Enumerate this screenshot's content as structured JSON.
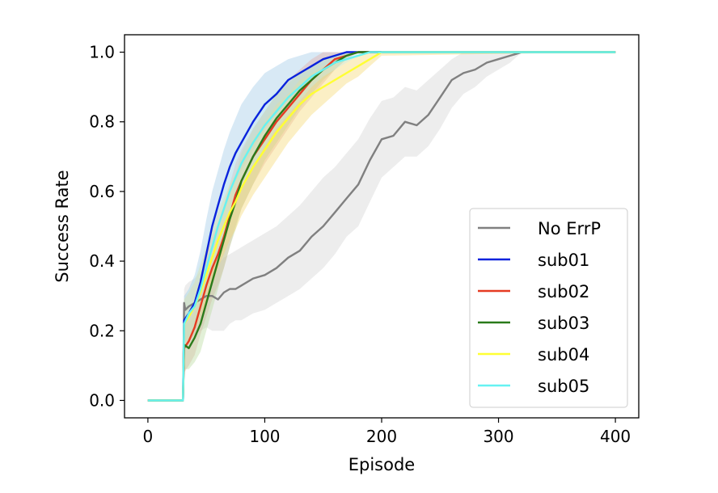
{
  "chart_data": {
    "type": "line",
    "title": "",
    "xlabel": "Episode",
    "ylabel": "Success Rate",
    "xlim": [
      -20,
      420
    ],
    "ylim": [
      -0.05,
      1.05
    ],
    "xticks": [
      0,
      100,
      200,
      300,
      400
    ],
    "yticks": [
      0.0,
      0.2,
      0.4,
      0.6,
      0.8,
      1.0
    ],
    "xtick_labels": [
      "0",
      "100",
      "200",
      "300",
      "400"
    ],
    "ytick_labels": [
      "0.0",
      "0.2",
      "0.4",
      "0.6",
      "0.8",
      "1.0"
    ],
    "grid": false,
    "legend_position": "lower-right",
    "series": [
      {
        "name": "No ErrP",
        "color": "#808080",
        "band_color": "#d3d3d3",
        "x": [
          0,
          30,
          31,
          32,
          35,
          40,
          45,
          50,
          55,
          60,
          65,
          70,
          75,
          80,
          90,
          100,
          110,
          120,
          130,
          140,
          150,
          160,
          170,
          180,
          190,
          200,
          210,
          220,
          230,
          240,
          250,
          260,
          270,
          280,
          290,
          300,
          310,
          320,
          330,
          400
        ],
        "y": [
          0.0,
          0.0,
          0.28,
          0.26,
          0.27,
          0.28,
          0.29,
          0.3,
          0.3,
          0.29,
          0.31,
          0.32,
          0.32,
          0.33,
          0.35,
          0.36,
          0.38,
          0.41,
          0.43,
          0.47,
          0.5,
          0.54,
          0.58,
          0.62,
          0.69,
          0.75,
          0.76,
          0.8,
          0.79,
          0.82,
          0.87,
          0.92,
          0.94,
          0.95,
          0.97,
          0.98,
          0.99,
          1.0,
          1.0,
          1.0
        ],
        "band_lower": [
          0.0,
          0.0,
          0.14,
          0.16,
          0.17,
          0.19,
          0.2,
          0.21,
          0.2,
          0.2,
          0.2,
          0.22,
          0.23,
          0.23,
          0.25,
          0.26,
          0.28,
          0.3,
          0.32,
          0.35,
          0.38,
          0.42,
          0.47,
          0.5,
          0.57,
          0.64,
          0.67,
          0.7,
          0.7,
          0.73,
          0.78,
          0.84,
          0.88,
          0.9,
          0.93,
          0.95,
          0.97,
          1.0,
          1.0,
          1.0
        ],
        "band_upper": [
          0.0,
          0.0,
          0.32,
          0.33,
          0.34,
          0.35,
          0.37,
          0.38,
          0.39,
          0.39,
          0.41,
          0.42,
          0.43,
          0.44,
          0.46,
          0.48,
          0.5,
          0.53,
          0.56,
          0.6,
          0.64,
          0.67,
          0.71,
          0.75,
          0.81,
          0.86,
          0.87,
          0.9,
          0.89,
          0.92,
          0.95,
          0.98,
          1.0,
          1.0,
          1.0,
          1.0,
          1.0,
          1.0,
          1.0,
          1.0
        ]
      },
      {
        "name": "sub01",
        "color": "#0a22dd",
        "band_color": "#9ec9e6",
        "x": [
          0,
          30,
          31,
          35,
          40,
          45,
          50,
          55,
          60,
          65,
          70,
          75,
          80,
          90,
          100,
          110,
          120,
          130,
          140,
          150,
          160,
          170,
          180,
          190,
          200,
          400
        ],
        "y": [
          0.0,
          0.0,
          0.23,
          0.25,
          0.28,
          0.34,
          0.42,
          0.5,
          0.56,
          0.62,
          0.67,
          0.71,
          0.74,
          0.8,
          0.85,
          0.88,
          0.92,
          0.94,
          0.96,
          0.98,
          0.99,
          1.0,
          1.0,
          1.0,
          1.0,
          1.0
        ],
        "band_lower": [
          0.0,
          0.0,
          0.16,
          0.18,
          0.21,
          0.26,
          0.34,
          0.42,
          0.48,
          0.54,
          0.59,
          0.63,
          0.66,
          0.72,
          0.78,
          0.82,
          0.86,
          0.89,
          0.92,
          0.95,
          0.97,
          0.99,
          1.0,
          1.0,
          1.0,
          1.0
        ],
        "band_upper": [
          0.0,
          0.0,
          0.3,
          0.32,
          0.36,
          0.43,
          0.52,
          0.6,
          0.66,
          0.72,
          0.77,
          0.81,
          0.85,
          0.9,
          0.94,
          0.96,
          0.98,
          0.99,
          1.0,
          1.0,
          1.0,
          1.0,
          1.0,
          1.0,
          1.0,
          1.0
        ]
      },
      {
        "name": "sub02",
        "color": "#e63b22",
        "band_color": "#e4a8a3",
        "x": [
          0,
          30,
          31,
          35,
          40,
          45,
          50,
          55,
          60,
          65,
          70,
          75,
          80,
          90,
          100,
          110,
          120,
          130,
          140,
          150,
          160,
          170,
          180,
          190,
          200,
          400
        ],
        "y": [
          0.0,
          0.0,
          0.15,
          0.17,
          0.21,
          0.27,
          0.33,
          0.38,
          0.42,
          0.47,
          0.53,
          0.59,
          0.63,
          0.7,
          0.75,
          0.8,
          0.84,
          0.88,
          0.92,
          0.95,
          0.98,
          0.99,
          1.0,
          1.0,
          1.0,
          1.0
        ],
        "band_lower": [
          0.0,
          0.0,
          0.08,
          0.1,
          0.13,
          0.19,
          0.24,
          0.29,
          0.33,
          0.38,
          0.44,
          0.5,
          0.55,
          0.62,
          0.68,
          0.73,
          0.78,
          0.83,
          0.87,
          0.91,
          0.95,
          0.98,
          1.0,
          1.0,
          1.0,
          1.0
        ],
        "band_upper": [
          0.0,
          0.0,
          0.22,
          0.25,
          0.29,
          0.35,
          0.42,
          0.47,
          0.51,
          0.56,
          0.62,
          0.68,
          0.72,
          0.78,
          0.83,
          0.88,
          0.92,
          0.95,
          0.98,
          1.0,
          1.0,
          1.0,
          1.0,
          1.0,
          1.0,
          1.0
        ]
      },
      {
        "name": "sub03",
        "color": "#2a7a1a",
        "band_color": "#b6d99b",
        "x": [
          0,
          30,
          31,
          35,
          40,
          45,
          50,
          55,
          60,
          65,
          70,
          75,
          80,
          90,
          100,
          110,
          120,
          130,
          140,
          150,
          160,
          170,
          180,
          190,
          200,
          400
        ],
        "y": [
          0.0,
          0.0,
          0.16,
          0.15,
          0.18,
          0.22,
          0.28,
          0.34,
          0.4,
          0.46,
          0.52,
          0.57,
          0.63,
          0.7,
          0.76,
          0.81,
          0.85,
          0.89,
          0.92,
          0.95,
          0.97,
          0.99,
          1.0,
          1.0,
          1.0,
          1.0
        ],
        "band_lower": [
          0.0,
          0.0,
          0.09,
          0.09,
          0.11,
          0.14,
          0.2,
          0.26,
          0.32,
          0.38,
          0.44,
          0.49,
          0.55,
          0.62,
          0.69,
          0.74,
          0.79,
          0.84,
          0.88,
          0.92,
          0.95,
          0.98,
          1.0,
          1.0,
          1.0,
          1.0
        ],
        "band_upper": [
          0.0,
          0.0,
          0.23,
          0.22,
          0.25,
          0.3,
          0.36,
          0.42,
          0.48,
          0.54,
          0.6,
          0.65,
          0.71,
          0.78,
          0.83,
          0.88,
          0.91,
          0.94,
          0.96,
          0.98,
          0.99,
          1.0,
          1.0,
          1.0,
          1.0,
          1.0
        ]
      },
      {
        "name": "sub04",
        "color": "#ffff33",
        "band_color": "#f5d76e",
        "x": [
          0,
          30,
          31,
          35,
          40,
          45,
          50,
          55,
          60,
          65,
          70,
          75,
          80,
          90,
          100,
          110,
          120,
          130,
          140,
          150,
          160,
          170,
          180,
          190,
          200,
          400
        ],
        "y": [
          0.0,
          0.0,
          0.22,
          0.24,
          0.27,
          0.31,
          0.36,
          0.41,
          0.46,
          0.5,
          0.54,
          0.57,
          0.61,
          0.67,
          0.72,
          0.77,
          0.81,
          0.85,
          0.88,
          0.9,
          0.92,
          0.94,
          0.96,
          0.98,
          1.0,
          1.0
        ],
        "band_lower": [
          0.0,
          0.0,
          0.15,
          0.17,
          0.2,
          0.24,
          0.28,
          0.33,
          0.38,
          0.42,
          0.46,
          0.49,
          0.53,
          0.59,
          0.64,
          0.69,
          0.74,
          0.78,
          0.82,
          0.85,
          0.88,
          0.91,
          0.93,
          0.96,
          0.99,
          1.0
        ],
        "band_upper": [
          0.0,
          0.0,
          0.29,
          0.31,
          0.34,
          0.39,
          0.44,
          0.49,
          0.54,
          0.58,
          0.62,
          0.65,
          0.69,
          0.75,
          0.8,
          0.85,
          0.88,
          0.92,
          0.94,
          0.96,
          0.97,
          0.98,
          0.99,
          1.0,
          1.0,
          1.0
        ]
      },
      {
        "name": "sub05",
        "color": "#66f2f2",
        "band_color": "#c4ecef",
        "x": [
          0,
          30,
          31,
          35,
          40,
          45,
          50,
          55,
          60,
          65,
          70,
          75,
          80,
          90,
          100,
          110,
          120,
          130,
          140,
          150,
          160,
          170,
          180,
          190,
          200,
          400
        ],
        "y": [
          0.0,
          0.0,
          0.22,
          0.25,
          0.27,
          0.32,
          0.38,
          0.44,
          0.5,
          0.55,
          0.6,
          0.64,
          0.68,
          0.74,
          0.79,
          0.83,
          0.87,
          0.9,
          0.93,
          0.95,
          0.97,
          0.98,
          0.99,
          1.0,
          1.0,
          1.0
        ],
        "band_lower": [
          0.0,
          0.0,
          0.15,
          0.18,
          0.2,
          0.25,
          0.31,
          0.37,
          0.43,
          0.48,
          0.53,
          0.57,
          0.61,
          0.67,
          0.73,
          0.78,
          0.82,
          0.86,
          0.9,
          0.93,
          0.95,
          0.97,
          0.99,
          1.0,
          1.0,
          1.0
        ],
        "band_upper": [
          0.0,
          0.0,
          0.29,
          0.32,
          0.35,
          0.4,
          0.46,
          0.52,
          0.58,
          0.63,
          0.68,
          0.72,
          0.75,
          0.81,
          0.86,
          0.89,
          0.92,
          0.94,
          0.96,
          0.98,
          0.99,
          1.0,
          1.0,
          1.0,
          1.0,
          1.0
        ]
      }
    ]
  }
}
